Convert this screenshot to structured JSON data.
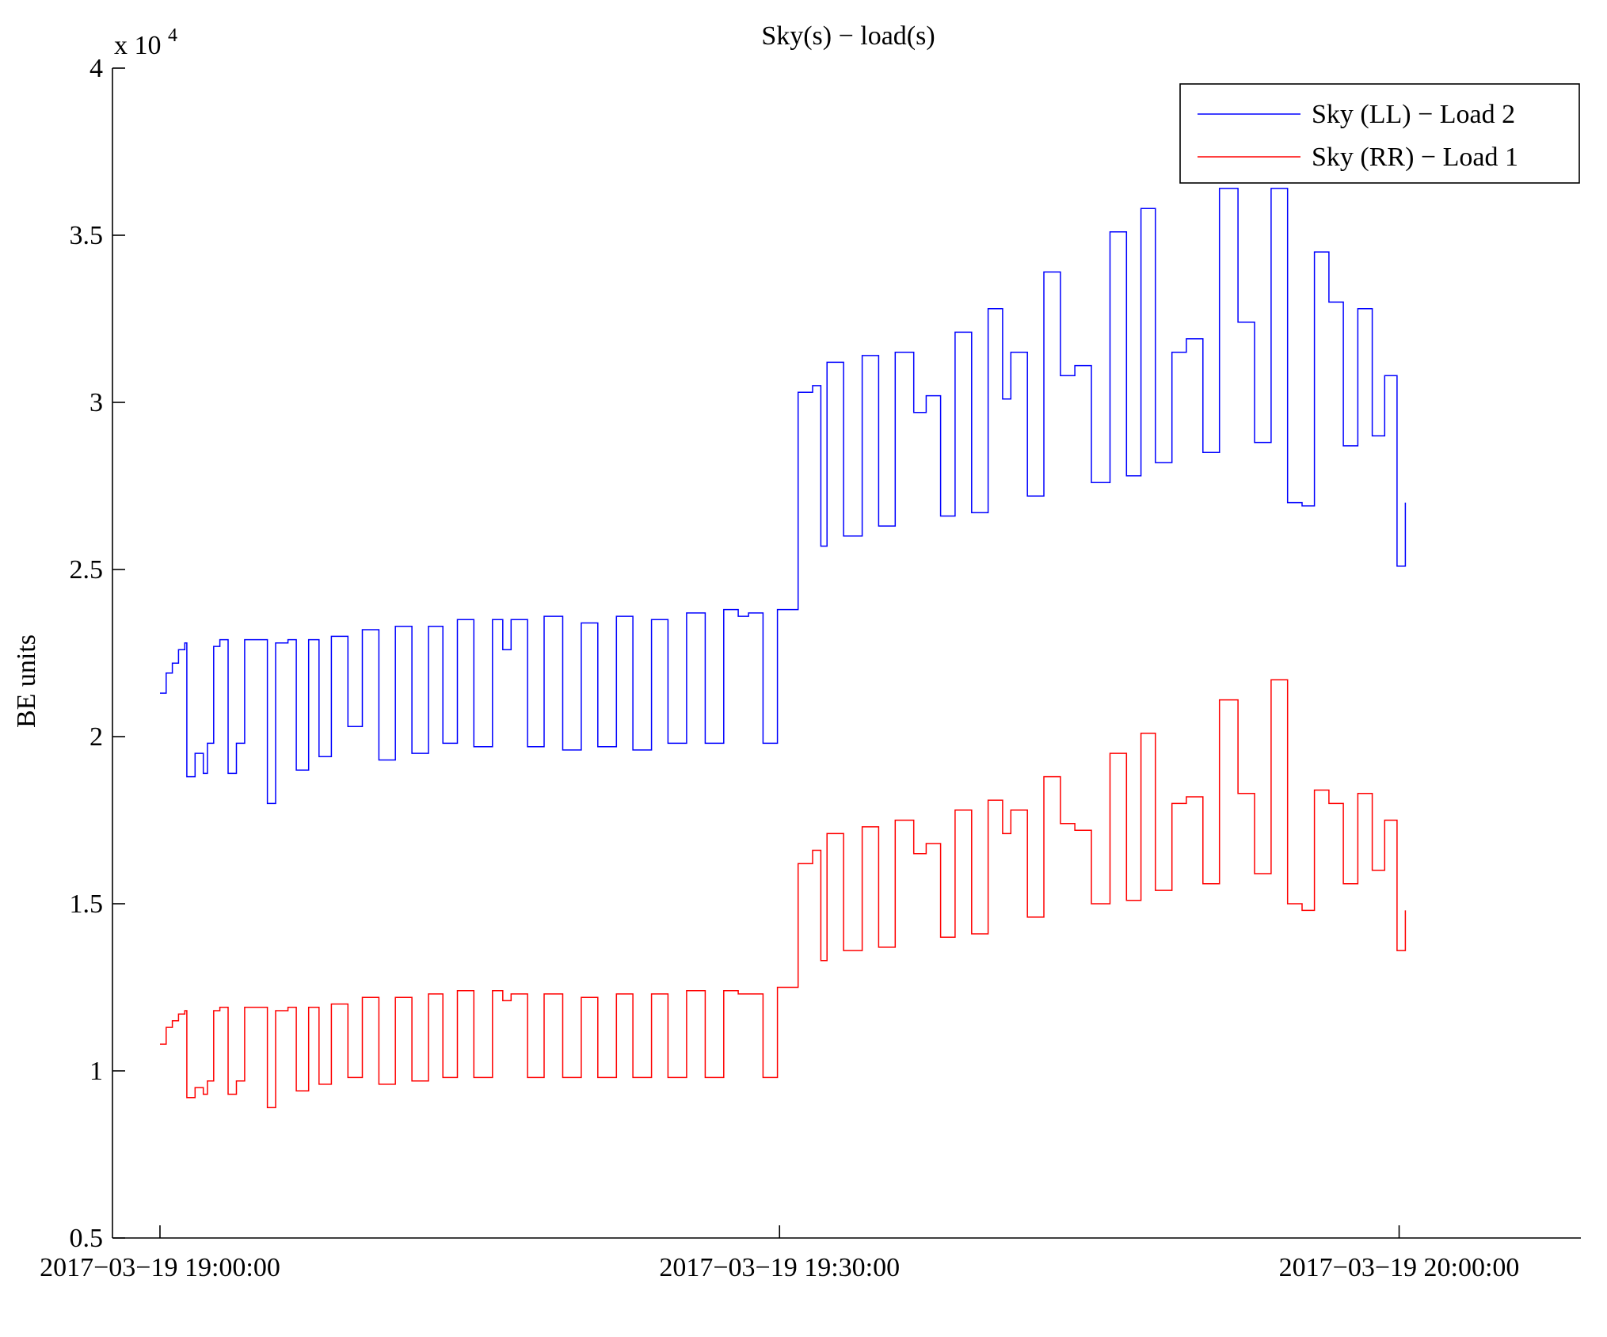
{
  "chart_data": {
    "type": "line",
    "title": "Sky(s) − load(s)",
    "ylabel": "BE units",
    "xlabel": "",
    "y_exponent_label": "x 10",
    "y_exponent_power": "4",
    "ylim": [
      5000,
      40000
    ],
    "y_ticks": [
      {
        "value": 5000,
        "label": "0.5"
      },
      {
        "value": 10000,
        "label": "1"
      },
      {
        "value": 15000,
        "label": "1.5"
      },
      {
        "value": 20000,
        "label": "2"
      },
      {
        "value": 25000,
        "label": "2.5"
      },
      {
        "value": 30000,
        "label": "3"
      },
      {
        "value": 35000,
        "label": "3.5"
      },
      {
        "value": 40000,
        "label": "4"
      }
    ],
    "xlim_minutes": [
      -2.3,
      68.8
    ],
    "x_ticks": [
      {
        "minute": 0,
        "label": "2017−03−19 19:00:00"
      },
      {
        "minute": 30,
        "label": "2017−03−19 19:30:00"
      },
      {
        "minute": 60,
        "label": "2017−03−19 20:00:00"
      }
    ],
    "legend": {
      "position": "top-right",
      "entries": [
        "Sky (LL) − Load 2",
        "Sky (RR) − Load 1"
      ]
    },
    "series": [
      {
        "name": "Sky (LL) − Load 2",
        "color": "#0000ff",
        "x_minutes": [
          0,
          0.3,
          0.6,
          0.9,
          1.2,
          1.3,
          1.7,
          2.1,
          2.3,
          2.6,
          2.9,
          3.3,
          3.7,
          4.1,
          4.6,
          5.2,
          5.6,
          6.2,
          6.6,
          7.2,
          7.7,
          8.3,
          9.1,
          9.8,
          10.6,
          11.4,
          12.2,
          13.0,
          13.7,
          14.4,
          15.2,
          16.1,
          16.6,
          17.0,
          17.8,
          18.6,
          19.5,
          20.4,
          21.2,
          22.1,
          22.9,
          23.8,
          24.6,
          25.5,
          26.4,
          27.3,
          28.0,
          28.5,
          29.2,
          29.9,
          30.9,
          31.6,
          32.0,
          32.3,
          33.1,
          34.0,
          34.8,
          35.6,
          36.5,
          37.1,
          37.8,
          38.5,
          39.3,
          40.1,
          40.8,
          41.2,
          42.0,
          42.8,
          43.6,
          44.3,
          45.1,
          46.0,
          46.8,
          47.5,
          48.2,
          49.0,
          49.7,
          50.5,
          51.3,
          52.2,
          53.0,
          53.8,
          54.6,
          55.3,
          55.9,
          56.6,
          57.3,
          58.0,
          58.7,
          59.3,
          59.9,
          60.3
        ],
        "y": [
          21300,
          21900,
          22200,
          22600,
          22800,
          18800,
          19500,
          18900,
          19800,
          22700,
          22900,
          18900,
          19800,
          22900,
          22900,
          18000,
          22800,
          22900,
          19000,
          22900,
          19400,
          23000,
          20300,
          23200,
          19300,
          23300,
          19500,
          23300,
          19800,
          23500,
          19700,
          23500,
          22600,
          23500,
          19700,
          23600,
          19600,
          23400,
          19700,
          23600,
          19600,
          23500,
          19800,
          23700,
          19800,
          23800,
          23600,
          23700,
          19800,
          23800,
          30300,
          30500,
          25700,
          31200,
          26000,
          31400,
          26300,
          31500,
          29700,
          30200,
          26600,
          32100,
          26700,
          32800,
          30100,
          31500,
          27200,
          33900,
          30800,
          31100,
          27600,
          35100,
          27800,
          35800,
          28200,
          31500,
          31900,
          28500,
          36400,
          32400,
          28800,
          36400,
          27000,
          26900,
          34500,
          33000,
          28700,
          32800,
          29000,
          30800,
          25100,
          27000
        ]
      },
      {
        "name": "Sky (RR) − Load 1",
        "color": "#ff0000",
        "x_minutes": [
          0,
          0.3,
          0.6,
          0.9,
          1.2,
          1.3,
          1.7,
          2.1,
          2.3,
          2.6,
          2.9,
          3.3,
          3.7,
          4.1,
          4.6,
          5.2,
          5.6,
          6.2,
          6.6,
          7.2,
          7.7,
          8.3,
          9.1,
          9.8,
          10.6,
          11.4,
          12.2,
          13.0,
          13.7,
          14.4,
          15.2,
          16.1,
          16.6,
          17.0,
          17.8,
          18.6,
          19.5,
          20.4,
          21.2,
          22.1,
          22.9,
          23.8,
          24.6,
          25.5,
          26.4,
          27.3,
          28.0,
          28.5,
          29.2,
          29.9,
          30.9,
          31.6,
          32.0,
          32.3,
          33.1,
          34.0,
          34.8,
          35.6,
          36.5,
          37.1,
          37.8,
          38.5,
          39.3,
          40.1,
          40.8,
          41.2,
          42.0,
          42.8,
          43.6,
          44.3,
          45.1,
          46.0,
          46.8,
          47.5,
          48.2,
          49.0,
          49.7,
          50.5,
          51.3,
          52.2,
          53.0,
          53.8,
          54.6,
          55.3,
          55.9,
          56.6,
          57.3,
          58.0,
          58.7,
          59.3,
          59.9,
          60.3
        ],
        "y": [
          10800,
          11300,
          11500,
          11700,
          11800,
          9200,
          9500,
          9300,
          9700,
          11800,
          11900,
          9300,
          9700,
          11900,
          11900,
          8900,
          11800,
          11900,
          9400,
          11900,
          9600,
          12000,
          9800,
          12200,
          9600,
          12200,
          9700,
          12300,
          9800,
          12400,
          9800,
          12400,
          12100,
          12300,
          9800,
          12300,
          9800,
          12200,
          9800,
          12300,
          9800,
          12300,
          9800,
          12400,
          9800,
          12400,
          12300,
          12300,
          9800,
          12500,
          16200,
          16600,
          13300,
          17100,
          13600,
          17300,
          13700,
          17500,
          16500,
          16800,
          14000,
          17800,
          14100,
          18100,
          17100,
          17800,
          14600,
          18800,
          17400,
          17200,
          15000,
          19500,
          15100,
          20100,
          15400,
          18000,
          18200,
          15600,
          21100,
          18300,
          15900,
          21700,
          15000,
          14800,
          18400,
          18000,
          15600,
          18300,
          16000,
          17500,
          13600,
          14800
        ]
      }
    ]
  }
}
